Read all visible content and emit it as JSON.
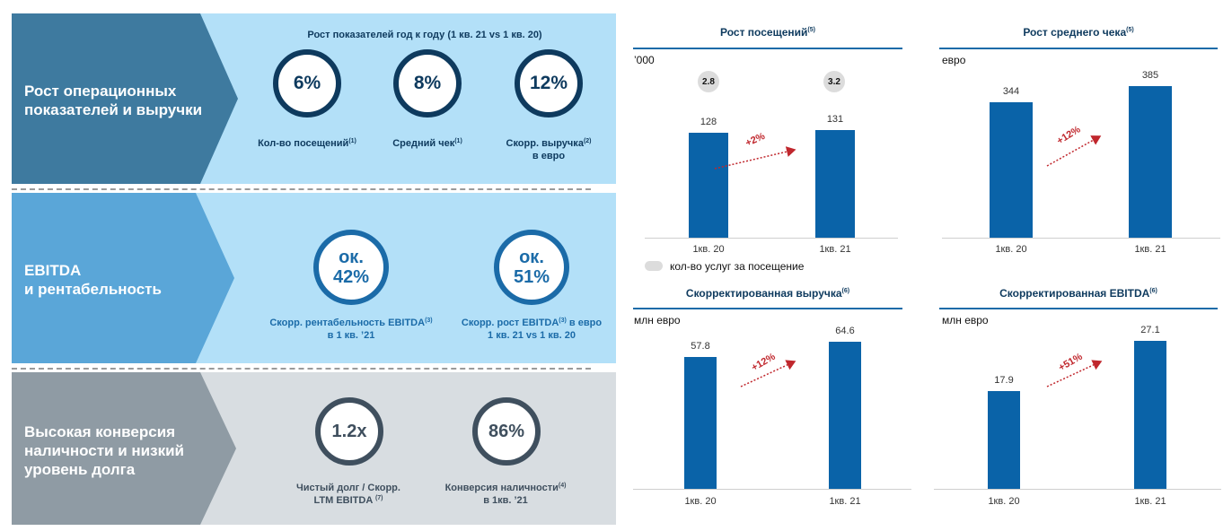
{
  "left": {
    "row1": {
      "title_line1": "Рост операционных",
      "title_line2": "показателей и выручки",
      "subtitle": "Рост показателей год к году (1 кв. 21 vs 1 кв. 20)",
      "kpis": [
        {
          "value": "6%",
          "label": "Кол-во посещений",
          "note": "(1)",
          "label2": ""
        },
        {
          "value": "8%",
          "label": "Средний чек",
          "note": "(1)",
          "label2": ""
        },
        {
          "value": "12%",
          "label": "Скорр. выручка",
          "note": "(2)",
          "label2": "в евро"
        }
      ]
    },
    "row2": {
      "title_line1": "EBITDA",
      "title_line2": "и рентабельность",
      "kpis": [
        {
          "value1": "ок.",
          "value2": "42%",
          "label": "Скорр. рентабельность EBITDA",
          "note": "(3)",
          "label2": "в 1 кв. ’21"
        },
        {
          "value1": "ок.",
          "value2": "51%",
          "label": "Скорр. рост EBITDA",
          "note": "(3)",
          "label_suffix": " в евро",
          "label2": "1 кв. 21 vs 1 кв. 20"
        }
      ]
    },
    "row3": {
      "title_line1": "Высокая конверсия",
      "title_line2": "наличности и низкий",
      "title_line3": "уровень долга",
      "kpis": [
        {
          "value": "1.2x",
          "label": "Чистый долг / Скорр.",
          "label2": "LTM EBITDA",
          "note": "(7)"
        },
        {
          "value": "86%",
          "label": "Конверсия наличности",
          "note": "(4)",
          "label2": "в 1кв. ’21"
        }
      ]
    }
  },
  "chart_data": [
    {
      "type": "bar",
      "title": "Рост посещений",
      "title_note": "(5)",
      "unit": "’000",
      "categories": [
        "1кв. 20",
        "1кв. 21"
      ],
      "values": [
        128,
        131
      ],
      "ylim": [
        0,
        160
      ],
      "growth": "+2%",
      "secondary": {
        "name": "кол-во услуг за посещение",
        "values": [
          "2.8",
          "3.2"
        ]
      }
    },
    {
      "type": "bar",
      "title": "Рост среднего чека",
      "title_note": "(5)",
      "unit": "евро",
      "categories": [
        "1кв. 20",
        "1кв. 21"
      ],
      "values": [
        344,
        385
      ],
      "ylim": [
        0,
        410
      ],
      "growth": "+12%"
    },
    {
      "type": "bar",
      "title": "Скорректированная выручка",
      "title_note": "(6)",
      "unit": "млн евро",
      "categories": [
        "1кв. 20",
        "1кв. 21"
      ],
      "values": [
        57.8,
        64.6
      ],
      "ylim": [
        0,
        68
      ],
      "growth": "+12%"
    },
    {
      "type": "bar",
      "title": "Скорректированная EBITDA",
      "title_note": "(6)",
      "unit": "млн евро",
      "categories": [
        "1кв. 20",
        "1кв. 21"
      ],
      "values": [
        17.9,
        27.1
      ],
      "ylim": [
        0,
        29
      ],
      "growth": "+51%"
    }
  ],
  "colors": {
    "row1_dark": "#3e7a9f",
    "row1_light": "#b3e0f8",
    "row2_dark": "#5aa6d8",
    "row2_light": "#b3e0f8",
    "row3_dark": "#8f9ba4",
    "row3_light": "#d8dde1",
    "bar": "#0a63a8",
    "growth": "#c0272d"
  }
}
